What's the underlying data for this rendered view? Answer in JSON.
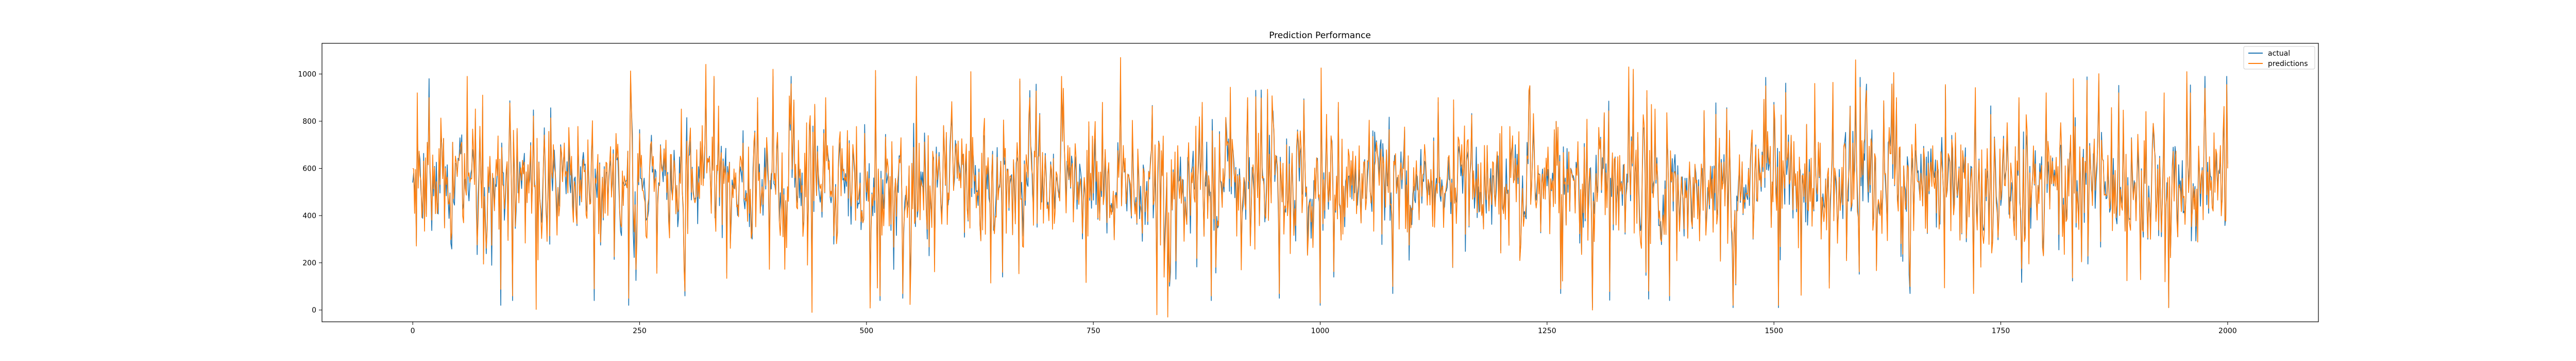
{
  "chart_data": {
    "type": "line",
    "title": "Prediction Performance",
    "xlabel": "",
    "ylabel": "",
    "x_range": [
      0,
      2000
    ],
    "xlim": [
      -100,
      2100
    ],
    "ylim": [
      -50,
      1130
    ],
    "x_ticks": [
      0,
      250,
      500,
      750,
      1000,
      1250,
      1500,
      1750,
      2000
    ],
    "y_ticks": [
      0,
      200,
      400,
      600,
      800,
      1000
    ],
    "grid": false,
    "legend": "top-right",
    "series": [
      {
        "name": "actual",
        "color": "#1f77b4"
      },
      {
        "name": "predictions",
        "color": "#ff7f0e"
      }
    ],
    "sampled_points": {
      "x": [
        0,
        5,
        18,
        60,
        110,
        200,
        238,
        300,
        332,
        380,
        420,
        440,
        455,
        515,
        540,
        555,
        615,
        650,
        680,
        715,
        760,
        780,
        820,
        832,
        870,
        880,
        920,
        955,
        1000,
        1020,
        1080,
        1130,
        1230,
        1265,
        1300,
        1340,
        1345,
        1360,
        1385,
        1455,
        1500,
        1505,
        1545,
        1590,
        1635,
        1650,
        1720,
        1770,
        1800,
        1830,
        1930,
        1935,
        1955,
        1990,
        2000
      ],
      "actual": [
        540,
        820,
        980,
        930,
        40,
        40,
        20,
        60,
        980,
        880,
        880,
        60,
        870,
        40,
        50,
        960,
        920,
        140,
        930,
        960,
        850,
        1000,
        90,
        60,
        860,
        40,
        890,
        50,
        20,
        860,
        70,
        880,
        910,
        70,
        10,
        980,
        1000,
        900,
        40,
        10,
        880,
        10,
        900,
        930,
        880,
        70,
        90,
        880,
        880,
        900,
        890,
        10,
        960,
        590,
        620
      ],
      "predictions": [
        600,
        920,
        900,
        990,
        60,
        90,
        50,
        80,
        990,
        900,
        890,
        -10,
        900,
        60,
        70,
        990,
        1010,
        160,
        900,
        990,
        880,
        1070,
        -20,
        -30,
        880,
        60,
        900,
        70,
        30,
        880,
        100,
        900,
        930,
        90,
        0,
        1030,
        1020,
        930,
        60,
        20,
        870,
        20,
        960,
        1060,
        900,
        100,
        70,
        900,
        920,
        980,
        920,
        10,
        1010,
        580,
        600
      ]
    }
  }
}
